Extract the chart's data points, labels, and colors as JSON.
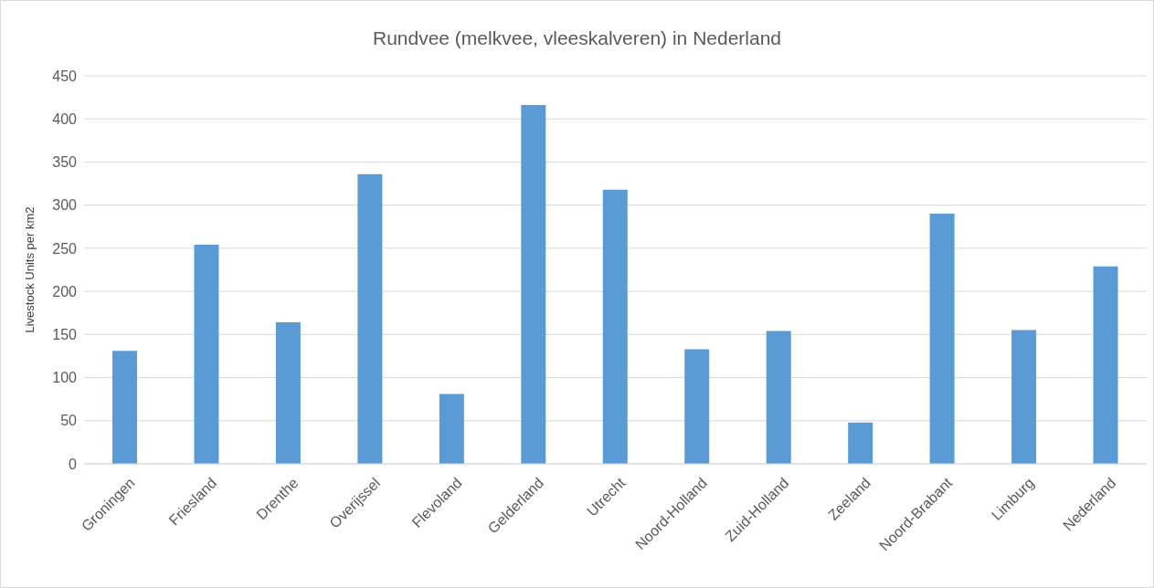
{
  "chart_data": {
    "type": "bar",
    "title": "Rundvee (melkvee, vleeskalveren) in Nederland",
    "ylabel": "Livestock Units per km2",
    "categories": [
      "Groningen",
      "Friesland",
      "Drenthe",
      "Overijssel",
      "Flevoland",
      "Gelderland",
      "Utrecht",
      "Noord-Holland",
      "Zuid-Holland",
      "Zeeland",
      "Noord-Brabant",
      "Limburg",
      "Nederland"
    ],
    "values": [
      131,
      254,
      164,
      336,
      81,
      416,
      318,
      133,
      154,
      48,
      290,
      155,
      229
    ],
    "color": "#5b9bd5",
    "ylim": [
      0,
      450
    ],
    "yticks": [
      0,
      50,
      100,
      150,
      200,
      250,
      300,
      350,
      400,
      450
    ],
    "grid": "y",
    "legend": false
  }
}
